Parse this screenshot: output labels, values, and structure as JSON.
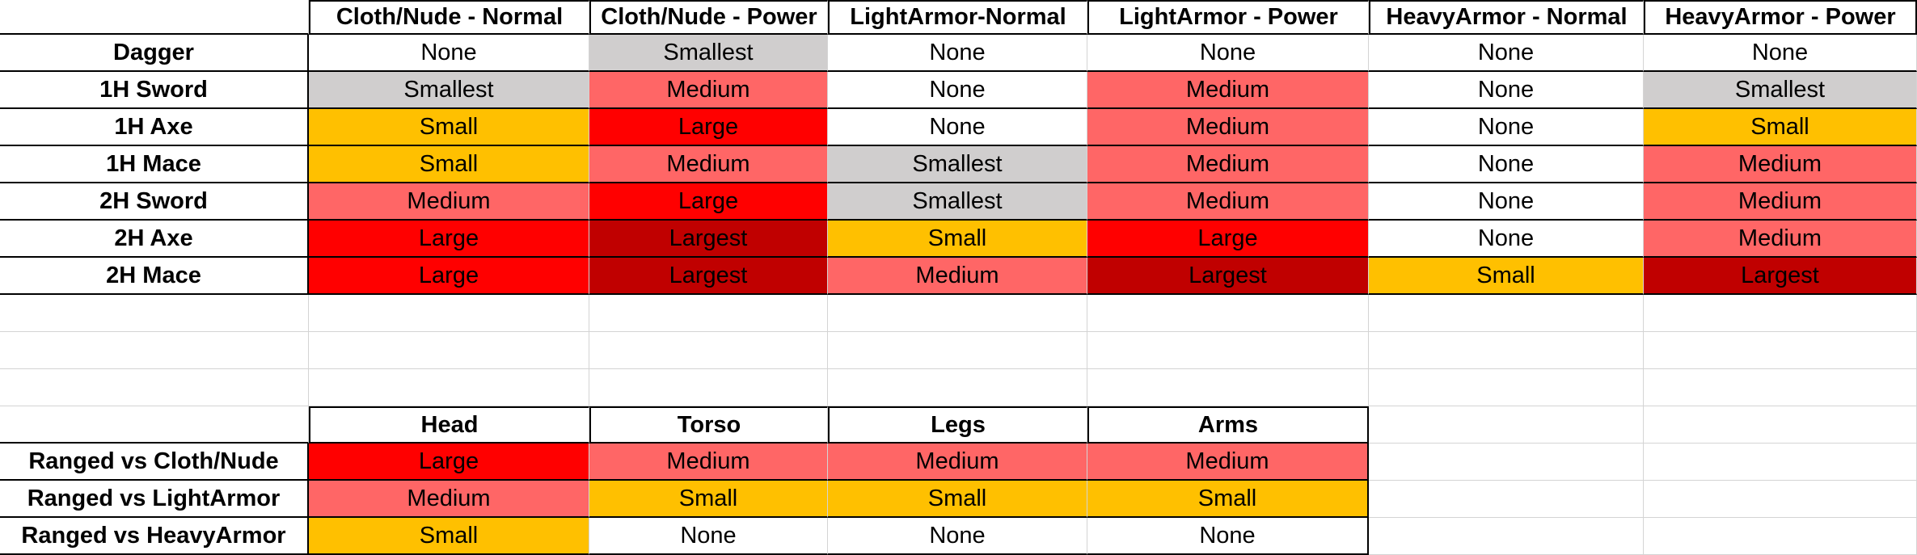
{
  "colors": {
    "None": "#ffffff",
    "Smallest": "#d0cece",
    "Small": "#ffc000",
    "Medium": "#ff6666",
    "Large": "#ff0000",
    "Largest": "#c00000"
  },
  "melee": {
    "columns": [
      "Cloth/Nude - Normal",
      "Cloth/Nude - Power",
      "LightArmor-Normal",
      "LightArmor - Power",
      "HeavyArmor - Normal",
      "HeavyArmor - Power"
    ],
    "rows": [
      {
        "label": "Dagger",
        "cells": [
          "None",
          "Smallest",
          "None",
          "None",
          "None",
          "None"
        ]
      },
      {
        "label": "1H Sword",
        "cells": [
          "Smallest",
          "Medium",
          "None",
          "Medium",
          "None",
          "Smallest"
        ]
      },
      {
        "label": "1H Axe",
        "cells": [
          "Small",
          "Large",
          "None",
          "Medium",
          "None",
          "Small"
        ]
      },
      {
        "label": "1H Mace",
        "cells": [
          "Small",
          "Medium",
          "Smallest",
          "Medium",
          "None",
          "Medium"
        ]
      },
      {
        "label": "2H Sword",
        "cells": [
          "Medium",
          "Large",
          "Smallest",
          "Medium",
          "None",
          "Medium"
        ]
      },
      {
        "label": "2H Axe",
        "cells": [
          "Large",
          "Largest",
          "Small",
          "Large",
          "None",
          "Medium"
        ]
      },
      {
        "label": "2H Mace",
        "cells": [
          "Large",
          "Largest",
          "Medium",
          "Largest",
          "Small",
          "Largest"
        ]
      }
    ]
  },
  "ranged": {
    "columns": [
      "Head",
      "Torso",
      "Legs",
      "Arms"
    ],
    "rows": [
      {
        "label": "Ranged vs Cloth/Nude",
        "cells": [
          "Large",
          "Medium",
          "Medium",
          "Medium"
        ]
      },
      {
        "label": "Ranged vs LightArmor",
        "cells": [
          "Medium",
          "Small",
          "Small",
          "Small"
        ]
      },
      {
        "label": "Ranged vs HeavyArmor",
        "cells": [
          "Small",
          "None",
          "None",
          "None"
        ]
      }
    ]
  }
}
